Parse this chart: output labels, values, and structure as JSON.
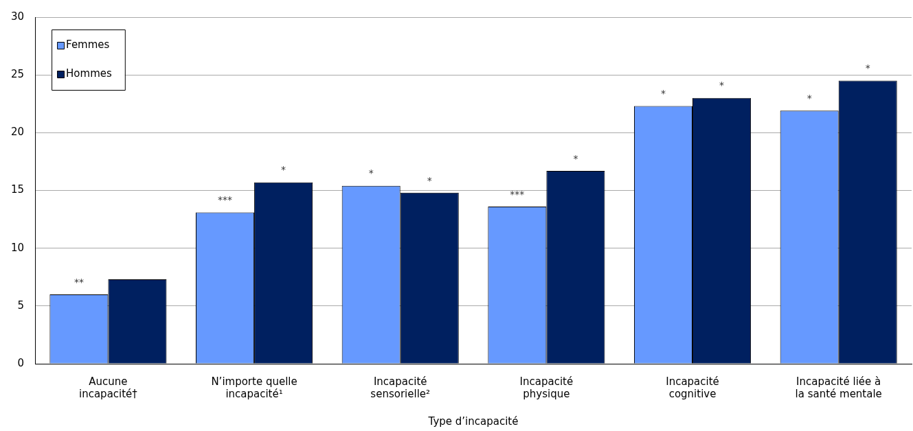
{
  "chart_data": {
    "type": "bar",
    "xlabel": "Type d’incapacité",
    "categories": [
      "Aucune incapacité†",
      "N’importe quelle incapacité¹",
      "Incapacité sensorielle²",
      "Incapacité physique",
      "Incapacité cognitive",
      "Incapacité liée à la santé mentale"
    ],
    "series": [
      {
        "name": "Femmes",
        "color": "#6699ff",
        "values": [
          6.0,
          13.1,
          15.4,
          13.6,
          22.3,
          21.9
        ],
        "value_labels": [
          "**",
          "***",
          "*",
          "***",
          "*",
          "*"
        ]
      },
      {
        "name": "Hommes",
        "color": "#002060",
        "values": [
          7.3,
          15.7,
          14.8,
          16.7,
          23.0,
          24.5
        ],
        "value_labels": [
          null,
          "*",
          "*",
          "*",
          "*",
          "*"
        ]
      }
    ],
    "ylim": [
      0,
      30
    ],
    "yticks": [
      0,
      5,
      10,
      15,
      20,
      25,
      30
    ],
    "grid": "y",
    "legend": "top left"
  }
}
